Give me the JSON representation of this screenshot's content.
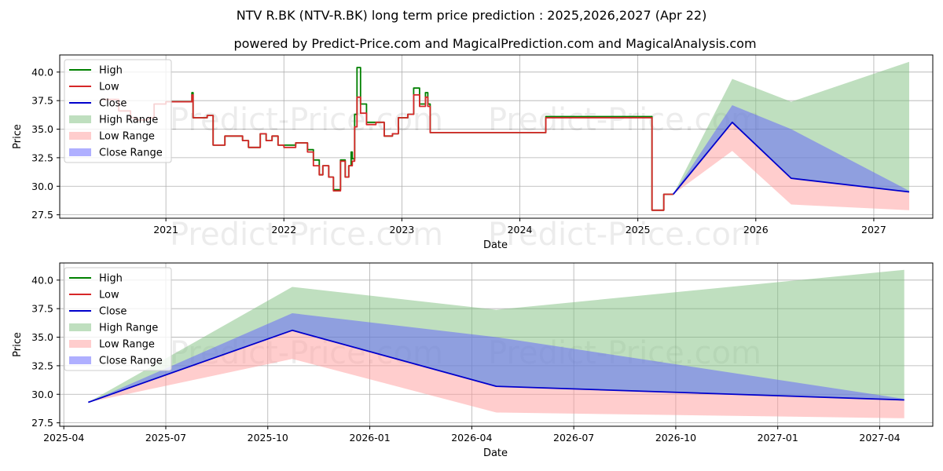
{
  "title": "NTV R.BK (NTV-R.BK) long term price prediction : 2025,2026,2027 (Apr 22)",
  "subtitle": "powered by Predict-Price.com and MagicalPrediction.com and MagicalAnalysis.com",
  "watermark": "Predict-Price.com",
  "colors": {
    "high": "#008000",
    "low": "#d62728",
    "close": "#0000cc",
    "high_range": "#7fbf7f",
    "low_range": "#ff9c9c",
    "close_range": "#6060ff",
    "grid": "#b0b0b0"
  },
  "chart_data": [
    {
      "type": "line",
      "name": "top-history-chart",
      "xlabel": "Date",
      "ylabel": "Price",
      "xlim": [
        2020.1,
        2027.5
      ],
      "ylim": [
        27.2,
        41.5
      ],
      "x_ticks": [
        2021,
        2022,
        2023,
        2024,
        2025,
        2026,
        2027
      ],
      "x_tick_labels": [
        "2021",
        "2022",
        "2023",
        "2024",
        "2025",
        "2026",
        "2027"
      ],
      "y_ticks": [
        27.5,
        30.0,
        32.5,
        35.0,
        37.5,
        40.0
      ],
      "y_tick_labels": [
        "27.5",
        "30.0",
        "32.5",
        "35.0",
        "37.5",
        "40.0"
      ],
      "grid": true,
      "legend": {
        "position": "top-left",
        "entries": [
          "High",
          "Low",
          "Close",
          "High Range",
          "Low Range",
          "Close Range"
        ]
      },
      "series": [
        {
          "name": "High",
          "x": [
            2021.0,
            2021.2,
            2021.22,
            2021.23,
            2021.25,
            2021.35,
            2021.4,
            2021.5,
            2021.65,
            2021.7,
            2021.8,
            2021.85,
            2021.9,
            2021.95,
            2022.0,
            2022.1,
            2022.2,
            2022.25,
            2022.3,
            2022.33,
            2022.38,
            2022.42,
            2022.48,
            2022.52,
            2022.55,
            2022.57,
            2022.58,
            2022.6,
            2022.62,
            2022.65,
            2022.7,
            2022.78,
            2022.85,
            2022.92,
            2022.97,
            2023.05,
            2023.08,
            2023.1,
            2023.15,
            2023.2,
            2023.22,
            2023.24,
            2024.2,
            2024.22,
            2025.1,
            2025.12,
            2025.2,
            2025.22,
            2025.3
          ],
          "values": [
            37.4,
            37.4,
            38.2,
            36.0,
            36.0,
            36.2,
            33.6,
            34.4,
            34.0,
            33.4,
            34.6,
            34.0,
            34.4,
            33.6,
            33.6,
            33.8,
            33.2,
            32.3,
            31.0,
            31.8,
            30.8,
            29.7,
            32.3,
            30.8,
            31.8,
            33.0,
            32.4,
            36.3,
            40.4,
            37.2,
            35.6,
            35.6,
            34.4,
            34.6,
            36.0,
            36.3,
            36.3,
            38.6,
            37.2,
            38.2,
            37.2,
            34.7,
            34.7,
            36.1,
            36.1,
            27.9,
            27.9,
            29.3,
            29.3
          ]
        },
        {
          "name": "Low",
          "x": [
            2020.45,
            2020.6,
            2020.7,
            2020.75,
            2020.85,
            2020.9,
            2021.0,
            2021.2,
            2021.22,
            2021.23,
            2021.25,
            2021.35,
            2021.4,
            2021.5,
            2021.65,
            2021.7,
            2021.8,
            2021.85,
            2021.9,
            2021.95,
            2022.0,
            2022.1,
            2022.2,
            2022.25,
            2022.3,
            2022.33,
            2022.38,
            2022.42,
            2022.48,
            2022.52,
            2022.55,
            2022.58,
            2022.6,
            2022.62,
            2022.65,
            2022.7,
            2022.78,
            2022.85,
            2022.92,
            2022.97,
            2023.05,
            2023.08,
            2023.1,
            2023.15,
            2023.2,
            2023.22,
            2023.24,
            2024.2,
            2024.22,
            2025.1,
            2025.12,
            2025.2,
            2025.22,
            2025.3
          ],
          "values": [
            37.6,
            36.6,
            36.0,
            35.8,
            36.0,
            37.2,
            37.4,
            37.4,
            38.0,
            36.0,
            36.0,
            36.2,
            33.6,
            34.4,
            34.0,
            33.4,
            34.6,
            34.0,
            34.4,
            33.6,
            33.4,
            33.8,
            33.0,
            31.8,
            31.0,
            31.8,
            30.8,
            29.6,
            32.2,
            30.8,
            31.8,
            32.2,
            35.2,
            37.8,
            36.4,
            35.4,
            35.6,
            34.4,
            34.6,
            36.0,
            36.3,
            36.3,
            38.0,
            37.0,
            37.8,
            37.0,
            34.7,
            34.7,
            36.0,
            36.0,
            27.9,
            27.9,
            29.3,
            29.3
          ]
        },
        {
          "name": "Close",
          "x": [
            2025.3,
            2025.8,
            2026.3,
            2027.3
          ],
          "values": [
            29.3,
            35.6,
            30.7,
            29.5
          ]
        }
      ],
      "ranges": [
        {
          "name": "High Range",
          "x": [
            2025.3,
            2025.8,
            2026.3,
            2027.3
          ],
          "upper": [
            29.3,
            39.4,
            37.4,
            40.9
          ],
          "lower": [
            29.3,
            35.6,
            30.7,
            29.5
          ]
        },
        {
          "name": "Low Range",
          "x": [
            2025.3,
            2025.8,
            2026.3,
            2027.3
          ],
          "upper": [
            29.3,
            35.6,
            30.7,
            29.5
          ],
          "lower": [
            29.3,
            33.1,
            28.4,
            27.9
          ]
        },
        {
          "name": "Close Range",
          "x": [
            2025.3,
            2025.8,
            2026.3,
            2027.3
          ],
          "upper": [
            29.3,
            37.1,
            35.0,
            29.6
          ],
          "lower": [
            29.3,
            35.6,
            30.7,
            29.5
          ]
        }
      ]
    },
    {
      "type": "line",
      "name": "bottom-forecast-chart",
      "xlabel": "Date",
      "ylabel": "Price",
      "xlim": [
        2025.24,
        2027.38
      ],
      "ylim": [
        27.2,
        41.5
      ],
      "x_ticks": [
        2025.25,
        2025.5,
        2025.75,
        2026.0,
        2026.25,
        2026.5,
        2026.75,
        2027.0,
        2027.25
      ],
      "x_tick_labels": [
        "2025-04",
        "2025-07",
        "2025-10",
        "2026-01",
        "2026-04",
        "2026-07",
        "2026-10",
        "2027-01",
        "2027-04"
      ],
      "y_ticks": [
        27.5,
        30.0,
        32.5,
        35.0,
        37.5,
        40.0
      ],
      "y_tick_labels": [
        "27.5",
        "30.0",
        "32.5",
        "35.0",
        "37.5",
        "40.0"
      ],
      "grid": true,
      "legend": {
        "position": "top-left",
        "entries": [
          "High",
          "Low",
          "Close",
          "High Range",
          "Low Range",
          "Close Range"
        ]
      },
      "series": [
        {
          "name": "High",
          "x": [],
          "values": []
        },
        {
          "name": "Low",
          "x": [],
          "values": []
        },
        {
          "name": "Close",
          "x": [
            2025.31,
            2025.81,
            2026.31,
            2027.31
          ],
          "values": [
            29.3,
            35.6,
            30.7,
            29.5
          ]
        }
      ],
      "ranges": [
        {
          "name": "High Range",
          "x": [
            2025.31,
            2025.81,
            2026.31,
            2027.31
          ],
          "upper": [
            29.3,
            39.4,
            37.4,
            40.9
          ],
          "lower": [
            29.3,
            35.6,
            30.7,
            29.5
          ]
        },
        {
          "name": "Low Range",
          "x": [
            2025.31,
            2025.81,
            2026.31,
            2027.31
          ],
          "upper": [
            29.3,
            35.6,
            30.7,
            29.5
          ],
          "lower": [
            29.3,
            33.1,
            28.4,
            27.9
          ]
        },
        {
          "name": "Close Range",
          "x": [
            2025.31,
            2025.81,
            2026.31,
            2027.31
          ],
          "upper": [
            29.3,
            37.1,
            35.0,
            29.6
          ],
          "lower": [
            29.3,
            35.6,
            30.7,
            29.5
          ]
        }
      ]
    }
  ]
}
